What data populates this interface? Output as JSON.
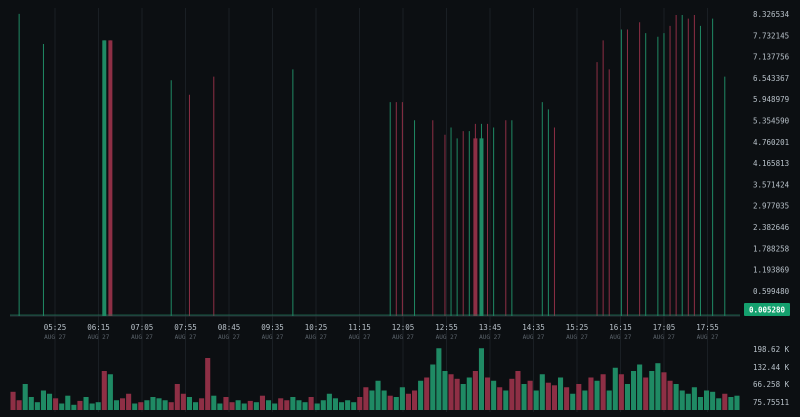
{
  "colors": {
    "up": "#1f8a64",
    "down": "#8e2f45",
    "grid": "#1a1f24",
    "background": "#0c0f12",
    "last_price_bg": "#15a06e"
  },
  "price_axis": {
    "labels": [
      "8.326534",
      "7.732145",
      "7.137756",
      "6.543367",
      "5.948979",
      "5.354590",
      "4.760201",
      "4.165813",
      "3.571424",
      "2.977035",
      "2.382646",
      "1.788258",
      "1.193869",
      "0.599480"
    ],
    "min": 0.005091,
    "max": 8.326534
  },
  "last_price": "0.005280",
  "time_axis": [
    {
      "time": "05:25",
      "date": "AUG 27"
    },
    {
      "time": "06:15",
      "date": "AUG 27"
    },
    {
      "time": "07:05",
      "date": "AUG 27"
    },
    {
      "time": "07:55",
      "date": "AUG 27"
    },
    {
      "time": "08:45",
      "date": "AUG 27"
    },
    {
      "time": "09:35",
      "date": "AUG 27"
    },
    {
      "time": "10:25",
      "date": "AUG 27"
    },
    {
      "time": "11:15",
      "date": "AUG 27"
    },
    {
      "time": "12:05",
      "date": "AUG 27"
    },
    {
      "time": "12:55",
      "date": "AUG 27"
    },
    {
      "time": "13:45",
      "date": "AUG 27"
    },
    {
      "time": "14:35",
      "date": "AUG 27"
    },
    {
      "time": "15:25",
      "date": "AUG 27"
    },
    {
      "time": "16:15",
      "date": "AUG 27"
    },
    {
      "time": "17:05",
      "date": "AUG 27"
    },
    {
      "time": "17:55",
      "date": "AUG 27"
    }
  ],
  "volume_axis": {
    "labels": [
      "198.62 K",
      "132.44 K",
      "66.258 K",
      "75.75511"
    ],
    "max": 198620
  },
  "chart_data": {
    "type": "candlestick",
    "price_range": [
      0.005091,
      8.326534
    ],
    "wicks": [
      {
        "bar": 1,
        "high": 8.33,
        "dir": "up"
      },
      {
        "bar": 5,
        "high": 7.5,
        "dir": "up"
      },
      {
        "bar": 15,
        "high": 7.6,
        "dir": "up",
        "body_top": 7.6
      },
      {
        "bar": 16,
        "high": 7.6,
        "dir": "down",
        "body_top": 7.6
      },
      {
        "bar": 26,
        "high": 6.5,
        "dir": "up"
      },
      {
        "bar": 29,
        "high": 6.1,
        "dir": "down"
      },
      {
        "bar": 33,
        "high": 6.6,
        "dir": "down"
      },
      {
        "bar": 46,
        "high": 6.8,
        "dir": "up"
      },
      {
        "bar": 62,
        "high": 5.9,
        "dir": "up"
      },
      {
        "bar": 63,
        "high": 5.9,
        "dir": "down"
      },
      {
        "bar": 64,
        "high": 5.9,
        "dir": "down"
      },
      {
        "bar": 66,
        "high": 5.4,
        "dir": "up"
      },
      {
        "bar": 69,
        "high": 5.4,
        "dir": "down"
      },
      {
        "bar": 71,
        "high": 5.0,
        "dir": "down"
      },
      {
        "bar": 72,
        "high": 5.2,
        "dir": "up"
      },
      {
        "bar": 73,
        "high": 4.9,
        "dir": "up"
      },
      {
        "bar": 74,
        "high": 5.1,
        "dir": "down"
      },
      {
        "bar": 75,
        "high": 5.1,
        "dir": "up"
      },
      {
        "bar": 76,
        "high": 5.3,
        "dir": "down",
        "body_top": 4.9
      },
      {
        "bar": 77,
        "high": 5.3,
        "dir": "up",
        "body_top": 4.9
      },
      {
        "bar": 78,
        "high": 5.3,
        "dir": "down"
      },
      {
        "bar": 79,
        "high": 5.2,
        "dir": "up"
      },
      {
        "bar": 81,
        "high": 5.4,
        "dir": "down"
      },
      {
        "bar": 82,
        "high": 5.4,
        "dir": "up"
      },
      {
        "bar": 87,
        "high": 5.9,
        "dir": "up"
      },
      {
        "bar": 88,
        "high": 5.7,
        "dir": "up"
      },
      {
        "bar": 89,
        "high": 5.2,
        "dir": "down"
      },
      {
        "bar": 96,
        "high": 7.0,
        "dir": "down"
      },
      {
        "bar": 97,
        "high": 7.6,
        "dir": "down"
      },
      {
        "bar": 98,
        "high": 6.8,
        "dir": "down"
      },
      {
        "bar": 100,
        "high": 7.9,
        "dir": "up"
      },
      {
        "bar": 101,
        "high": 7.9,
        "dir": "down"
      },
      {
        "bar": 103,
        "high": 8.1,
        "dir": "down"
      },
      {
        "bar": 104,
        "high": 7.8,
        "dir": "up"
      },
      {
        "bar": 106,
        "high": 7.7,
        "dir": "up"
      },
      {
        "bar": 107,
        "high": 7.8,
        "dir": "up"
      },
      {
        "bar": 108,
        "high": 8.0,
        "dir": "down"
      },
      {
        "bar": 109,
        "high": 8.3,
        "dir": "down"
      },
      {
        "bar": 110,
        "high": 8.3,
        "dir": "up"
      },
      {
        "bar": 111,
        "high": 8.2,
        "dir": "down"
      },
      {
        "bar": 112,
        "high": 8.3,
        "dir": "down"
      },
      {
        "bar": 113,
        "high": 8.0,
        "dir": "up"
      },
      {
        "bar": 115,
        "high": 8.2,
        "dir": "up"
      },
      {
        "bar": 117,
        "high": 6.6,
        "dir": "up"
      }
    ],
    "bar_count": 120,
    "volumes": [
      {
        "bar": 0,
        "v": 28,
        "dir": "down"
      },
      {
        "bar": 1,
        "v": 15,
        "dir": "down"
      },
      {
        "bar": 2,
        "v": 40,
        "dir": "up"
      },
      {
        "bar": 3,
        "v": 20,
        "dir": "up"
      },
      {
        "bar": 4,
        "v": 12,
        "dir": "up"
      },
      {
        "bar": 5,
        "v": 30,
        "dir": "up"
      },
      {
        "bar": 6,
        "v": 25,
        "dir": "up"
      },
      {
        "bar": 7,
        "v": 18,
        "dir": "down"
      },
      {
        "bar": 8,
        "v": 10,
        "dir": "up"
      },
      {
        "bar": 9,
        "v": 22,
        "dir": "up"
      },
      {
        "bar": 10,
        "v": 8,
        "dir": "up"
      },
      {
        "bar": 11,
        "v": 14,
        "dir": "down"
      },
      {
        "bar": 12,
        "v": 20,
        "dir": "up"
      },
      {
        "bar": 13,
        "v": 10,
        "dir": "up"
      },
      {
        "bar": 14,
        "v": 12,
        "dir": "up"
      },
      {
        "bar": 15,
        "v": 60,
        "dir": "down"
      },
      {
        "bar": 16,
        "v": 55,
        "dir": "up"
      },
      {
        "bar": 17,
        "v": 15,
        "dir": "up"
      },
      {
        "bar": 18,
        "v": 18,
        "dir": "down"
      },
      {
        "bar": 19,
        "v": 25,
        "dir": "down"
      },
      {
        "bar": 20,
        "v": 10,
        "dir": "up"
      },
      {
        "bar": 21,
        "v": 12,
        "dir": "down"
      },
      {
        "bar": 22,
        "v": 15,
        "dir": "up"
      },
      {
        "bar": 23,
        "v": 20,
        "dir": "up"
      },
      {
        "bar": 24,
        "v": 18,
        "dir": "up"
      },
      {
        "bar": 25,
        "v": 15,
        "dir": "up"
      },
      {
        "bar": 26,
        "v": 12,
        "dir": "down"
      },
      {
        "bar": 27,
        "v": 40,
        "dir": "down"
      },
      {
        "bar": 28,
        "v": 25,
        "dir": "down"
      },
      {
        "bar": 29,
        "v": 20,
        "dir": "up"
      },
      {
        "bar": 30,
        "v": 12,
        "dir": "up"
      },
      {
        "bar": 31,
        "v": 18,
        "dir": "down"
      },
      {
        "bar": 32,
        "v": 80,
        "dir": "down"
      },
      {
        "bar": 33,
        "v": 22,
        "dir": "up"
      },
      {
        "bar": 34,
        "v": 10,
        "dir": "up"
      },
      {
        "bar": 35,
        "v": 20,
        "dir": "down"
      },
      {
        "bar": 36,
        "v": 12,
        "dir": "down"
      },
      {
        "bar": 37,
        "v": 15,
        "dir": "up"
      },
      {
        "bar": 38,
        "v": 10,
        "dir": "up"
      },
      {
        "bar": 39,
        "v": 14,
        "dir": "down"
      },
      {
        "bar": 40,
        "v": 12,
        "dir": "up"
      },
      {
        "bar": 41,
        "v": 22,
        "dir": "down"
      },
      {
        "bar": 42,
        "v": 15,
        "dir": "up"
      },
      {
        "bar": 43,
        "v": 10,
        "dir": "up"
      },
      {
        "bar": 44,
        "v": 18,
        "dir": "down"
      },
      {
        "bar": 45,
        "v": 15,
        "dir": "down"
      },
      {
        "bar": 46,
        "v": 20,
        "dir": "up"
      },
      {
        "bar": 47,
        "v": 15,
        "dir": "up"
      },
      {
        "bar": 48,
        "v": 12,
        "dir": "up"
      },
      {
        "bar": 49,
        "v": 20,
        "dir": "down"
      },
      {
        "bar": 50,
        "v": 10,
        "dir": "up"
      },
      {
        "bar": 51,
        "v": 15,
        "dir": "up"
      },
      {
        "bar": 52,
        "v": 25,
        "dir": "up"
      },
      {
        "bar": 53,
        "v": 18,
        "dir": "up"
      },
      {
        "bar": 54,
        "v": 12,
        "dir": "up"
      },
      {
        "bar": 55,
        "v": 15,
        "dir": "up"
      },
      {
        "bar": 56,
        "v": 12,
        "dir": "up"
      },
      {
        "bar": 57,
        "v": 20,
        "dir": "down"
      },
      {
        "bar": 58,
        "v": 35,
        "dir": "down"
      },
      {
        "bar": 59,
        "v": 30,
        "dir": "up"
      },
      {
        "bar": 60,
        "v": 45,
        "dir": "up"
      },
      {
        "bar": 61,
        "v": 30,
        "dir": "up"
      },
      {
        "bar": 62,
        "v": 22,
        "dir": "down"
      },
      {
        "bar": 63,
        "v": 20,
        "dir": "up"
      },
      {
        "bar": 64,
        "v": 35,
        "dir": "up"
      },
      {
        "bar": 65,
        "v": 25,
        "dir": "down"
      },
      {
        "bar": 66,
        "v": 30,
        "dir": "down"
      },
      {
        "bar": 67,
        "v": 45,
        "dir": "up"
      },
      {
        "bar": 68,
        "v": 50,
        "dir": "down"
      },
      {
        "bar": 69,
        "v": 70,
        "dir": "up"
      },
      {
        "bar": 70,
        "v": 95,
        "dir": "up"
      },
      {
        "bar": 71,
        "v": 60,
        "dir": "up"
      },
      {
        "bar": 72,
        "v": 55,
        "dir": "down"
      },
      {
        "bar": 73,
        "v": 48,
        "dir": "down"
      },
      {
        "bar": 74,
        "v": 40,
        "dir": "up"
      },
      {
        "bar": 75,
        "v": 50,
        "dir": "up"
      },
      {
        "bar": 76,
        "v": 60,
        "dir": "down"
      },
      {
        "bar": 77,
        "v": 95,
        "dir": "up"
      },
      {
        "bar": 78,
        "v": 50,
        "dir": "down"
      },
      {
        "bar": 79,
        "v": 45,
        "dir": "up"
      },
      {
        "bar": 80,
        "v": 35,
        "dir": "down"
      },
      {
        "bar": 81,
        "v": 30,
        "dir": "up"
      },
      {
        "bar": 82,
        "v": 48,
        "dir": "down"
      },
      {
        "bar": 83,
        "v": 60,
        "dir": "down"
      },
      {
        "bar": 84,
        "v": 40,
        "dir": "up"
      },
      {
        "bar": 85,
        "v": 45,
        "dir": "down"
      },
      {
        "bar": 86,
        "v": 30,
        "dir": "up"
      },
      {
        "bar": 87,
        "v": 55,
        "dir": "up"
      },
      {
        "bar": 88,
        "v": 42,
        "dir": "down"
      },
      {
        "bar": 89,
        "v": 38,
        "dir": "down"
      },
      {
        "bar": 90,
        "v": 50,
        "dir": "up"
      },
      {
        "bar": 91,
        "v": 35,
        "dir": "down"
      },
      {
        "bar": 92,
        "v": 25,
        "dir": "up"
      },
      {
        "bar": 93,
        "v": 40,
        "dir": "down"
      },
      {
        "bar": 94,
        "v": 30,
        "dir": "up"
      },
      {
        "bar": 95,
        "v": 50,
        "dir": "down"
      },
      {
        "bar": 96,
        "v": 45,
        "dir": "up"
      },
      {
        "bar": 97,
        "v": 55,
        "dir": "down"
      },
      {
        "bar": 98,
        "v": 30,
        "dir": "up"
      },
      {
        "bar": 99,
        "v": 65,
        "dir": "up"
      },
      {
        "bar": 100,
        "v": 55,
        "dir": "down"
      },
      {
        "bar": 101,
        "v": 40,
        "dir": "up"
      },
      {
        "bar": 102,
        "v": 60,
        "dir": "up"
      },
      {
        "bar": 103,
        "v": 70,
        "dir": "up"
      },
      {
        "bar": 104,
        "v": 50,
        "dir": "down"
      },
      {
        "bar": 105,
        "v": 60,
        "dir": "up"
      },
      {
        "bar": 106,
        "v": 72,
        "dir": "up"
      },
      {
        "bar": 107,
        "v": 58,
        "dir": "down"
      },
      {
        "bar": 108,
        "v": 45,
        "dir": "down"
      },
      {
        "bar": 109,
        "v": 40,
        "dir": "up"
      },
      {
        "bar": 110,
        "v": 30,
        "dir": "up"
      },
      {
        "bar": 111,
        "v": 25,
        "dir": "up"
      },
      {
        "bar": 112,
        "v": 35,
        "dir": "up"
      },
      {
        "bar": 113,
        "v": 20,
        "dir": "up"
      },
      {
        "bar": 114,
        "v": 30,
        "dir": "up"
      },
      {
        "bar": 115,
        "v": 28,
        "dir": "up"
      },
      {
        "bar": 116,
        "v": 18,
        "dir": "up"
      },
      {
        "bar": 117,
        "v": 25,
        "dir": "down"
      },
      {
        "bar": 118,
        "v": 20,
        "dir": "up"
      },
      {
        "bar": 119,
        "v": 22,
        "dir": "up"
      }
    ]
  }
}
